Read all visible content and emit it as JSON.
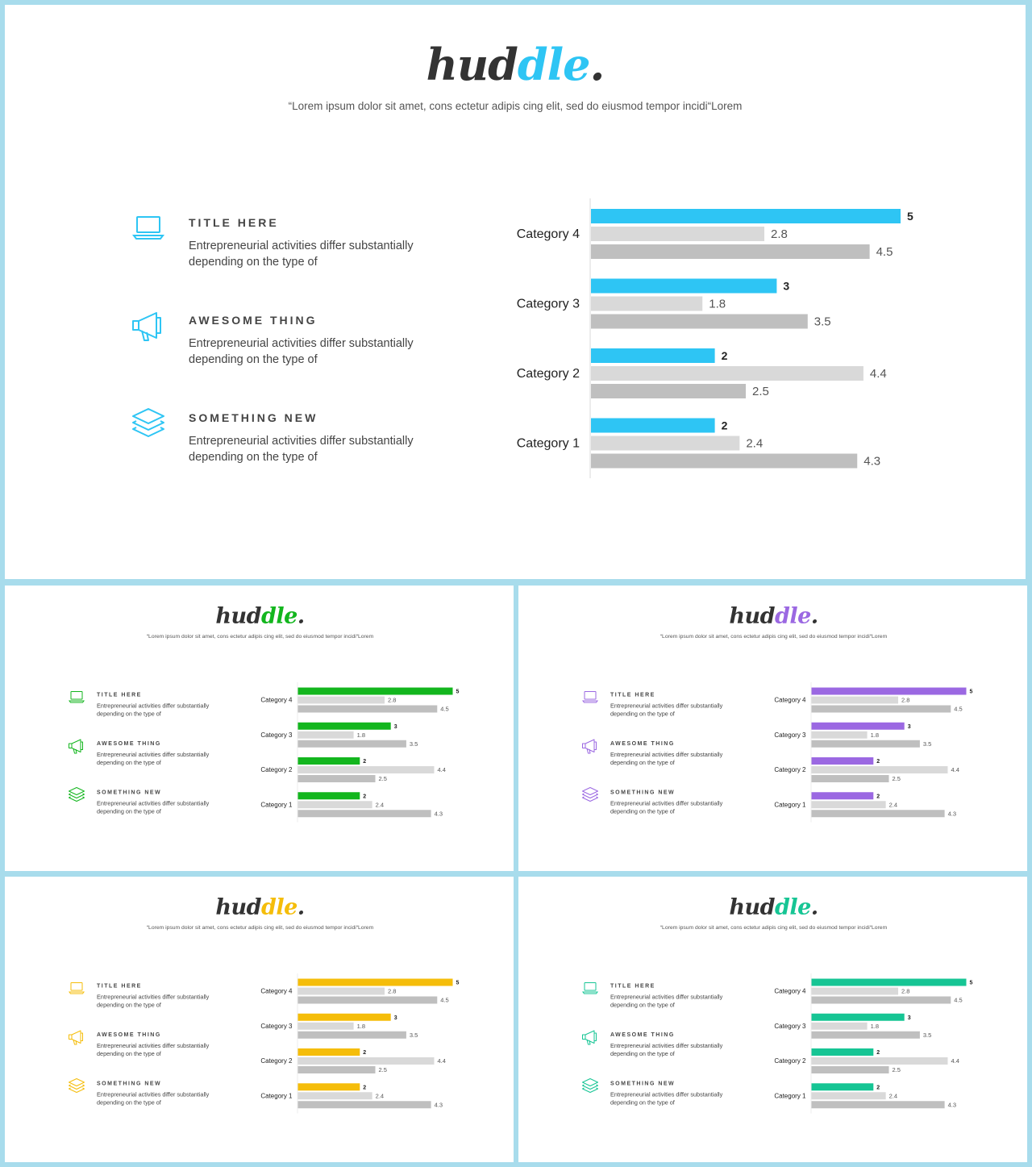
{
  "slides": [
    {
      "accent": "#2ec5f4"
    },
    {
      "accent": "#13b61e"
    },
    {
      "accent": "#9b68e2"
    },
    {
      "accent": "#f5bd0a"
    },
    {
      "accent": "#16c594"
    }
  ],
  "logo": {
    "prefix": "hud",
    "highlight": "dle",
    "suffix": "."
  },
  "tagline": "“Lorem ipsum dolor sit amet, cons ectetur adipis cing elit, sed do eiusmod tempor incidi“Lorem",
  "features": [
    {
      "icon": "laptop-icon",
      "title": "TITLE HERE",
      "desc": "Entrepreneurial activities differ substantially depending on the type of"
    },
    {
      "icon": "megaphone-icon",
      "title": "AWESOME THING",
      "desc": "Entrepreneurial activities differ substantially depending on the type of"
    },
    {
      "icon": "layers-icon",
      "title": "SOMETHING NEW",
      "desc": "Entrepreneurial activities differ substantially depending on the type of"
    }
  ],
  "chart_data": {
    "type": "bar",
    "orientation": "horizontal",
    "categories": [
      "Category 4",
      "Category 3",
      "Category 2",
      "Category 1"
    ],
    "series": [
      {
        "values": [
          5,
          3,
          2,
          2
        ],
        "color": "accent"
      },
      {
        "values": [
          2.8,
          1.8,
          4.4,
          2.4
        ],
        "color": "#d9d9d9"
      },
      {
        "values": [
          4.5,
          3.5,
          2.5,
          4.3
        ],
        "color": "#bfbfbf"
      }
    ],
    "xlim": [
      0,
      5
    ],
    "grid": false,
    "legend": "none",
    "data_labels": true
  }
}
